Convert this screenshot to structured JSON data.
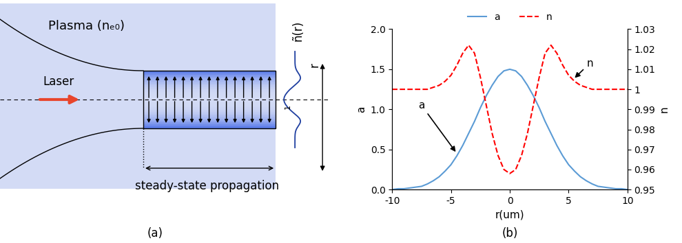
{
  "panel_a": {
    "label": "(a)",
    "plasma": "Plasma (nₑ₀)",
    "laser": "Laser",
    "propagation": "steady-state propagation",
    "profile": "ñ(r)",
    "profile_level": "1",
    "axis": "r"
  },
  "chart_data": {
    "type": "line",
    "panel_label": "(b)",
    "xlabel": "r(um)",
    "ylabel": "a",
    "y2label": "n",
    "x": [
      -10,
      -9.5,
      -9,
      -8.5,
      -8,
      -7.5,
      -7,
      -6.5,
      -6,
      -5.5,
      -5,
      -4.5,
      -4,
      -3.5,
      -3,
      -2.5,
      -2,
      -1.5,
      -1,
      -0.5,
      0,
      0.5,
      1,
      1.5,
      2,
      2.5,
      3,
      3.5,
      4,
      4.5,
      5,
      5.5,
      6,
      6.5,
      7,
      7.5,
      8,
      8.5,
      9,
      9.5,
      10
    ],
    "series": [
      {
        "name": "a",
        "color": "#5b9bd5",
        "line_style": "solid",
        "values": [
          0.0,
          0.01,
          0.01,
          0.02,
          0.03,
          0.04,
          0.07,
          0.11,
          0.16,
          0.23,
          0.31,
          0.42,
          0.55,
          0.7,
          0.85,
          1.02,
          1.17,
          1.3,
          1.41,
          1.48,
          1.5,
          1.48,
          1.41,
          1.3,
          1.17,
          1.02,
          0.85,
          0.7,
          0.55,
          0.42,
          0.31,
          0.23,
          0.16,
          0.11,
          0.07,
          0.04,
          0.03,
          0.02,
          0.01,
          0.01,
          0.0
        ]
      },
      {
        "name": "n",
        "color": "#ff0000",
        "line_style": "dashed",
        "axis": "y2",
        "values": [
          1.0,
          1.0,
          1.0,
          1.0,
          1.0,
          1.0,
          1.0,
          1.001,
          1.002,
          1.004,
          1.007,
          1.012,
          1.018,
          1.022,
          1.018,
          1.006,
          0.992,
          0.978,
          0.967,
          0.96,
          0.958,
          0.96,
          0.967,
          0.978,
          0.992,
          1.006,
          1.018,
          1.022,
          1.018,
          1.012,
          1.007,
          1.004,
          1.002,
          1.001,
          1.0,
          1.0,
          1.0,
          1.0,
          1.0,
          1.0,
          1.0
        ]
      }
    ],
    "xlim": [
      -10,
      10
    ],
    "xticks": [
      -10,
      -5,
      0,
      5,
      10
    ],
    "ylim": [
      0,
      2
    ],
    "yticks": [
      {
        "value": 0,
        "label": "0.0"
      },
      0.5,
      {
        "value": 1,
        "label": "1.0"
      },
      1.5,
      {
        "value": 2,
        "label": "2.0"
      }
    ],
    "y2lim": [
      0.95,
      1.03
    ],
    "y2ticks": [
      0.95,
      0.96,
      0.97,
      0.98,
      0.99,
      1,
      1.01,
      1.02,
      1.03
    ],
    "legend": "upper center",
    "grid": false,
    "annotations": [
      {
        "text": "a",
        "x": -7.5,
        "y": 1.05,
        "point_x": -4.5,
        "point_y": 0.45
      },
      {
        "text": "n",
        "x": 6.8,
        "y": 1.013,
        "point_x": 5.4,
        "point_y": 1.005,
        "axis": "y2"
      }
    ]
  }
}
